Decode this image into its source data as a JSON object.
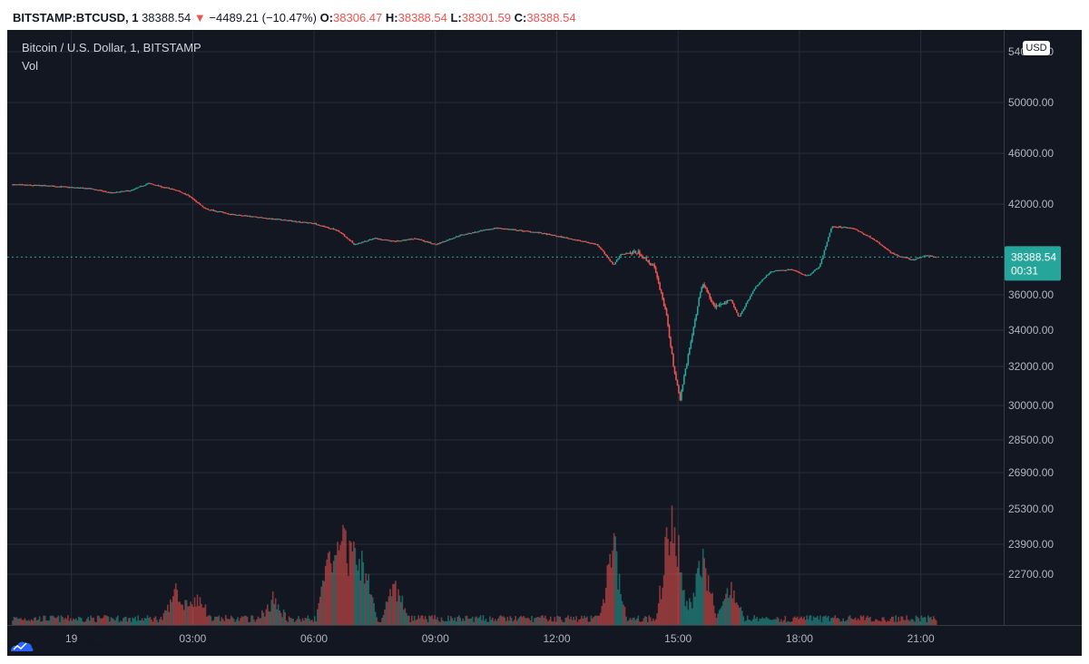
{
  "header": {
    "symbol": "BITSTAMP:BTCUSD, 1",
    "last": "38388.54",
    "arrow": "▼",
    "change": "−4489.21 (−10.47%)",
    "o_label": "O:",
    "o_value": "38306.47",
    "h_label": "H:",
    "h_value": "38388.54",
    "l_label": "L:",
    "l_value": "38301.59",
    "c_label": "C:",
    "c_value": "38388.54"
  },
  "legend": {
    "title": "Bitcoin / U.S. Dollar, 1, BITSTAMP",
    "vol_label": "Vol"
  },
  "currency_badge": "USD",
  "price_tag": {
    "price": "38388.54",
    "countdown": "00:31"
  },
  "footer": {
    "brand": "TradingView"
  },
  "colors": {
    "background": "#131722",
    "grid": "#2a2e39",
    "up": "#26a69a",
    "down": "#ef5350",
    "tag": "#26a69a",
    "axis_text": "#b2b5be"
  },
  "chart_data": {
    "type": "candlestick",
    "title": "Bitcoin / U.S. Dollar, 1, BITSTAMP",
    "x_ticks": [
      "19",
      "03:00",
      "06:00",
      "09:00",
      "12:00",
      "15:00",
      "18:00",
      "21:00"
    ],
    "x_tick_hours": [
      0,
      3,
      6,
      9,
      12,
      15,
      18,
      21
    ],
    "x_range_hours": [
      -1.45,
      23.05
    ],
    "y_ticks": [
      "54000.00",
      "50000.00",
      "46000.00",
      "42000.00",
      "36000.00",
      "34000.00",
      "32000.00",
      "30000.00",
      "28500.00",
      "26900.00",
      "25300.00",
      "23900.00",
      "22700.00"
    ],
    "y_scale": "log",
    "last_price": 38388.54,
    "price_path": [
      {
        "t": -1.45,
        "p": 43300
      },
      {
        "t": -0.5,
        "p": 43200
      },
      {
        "t": 0.5,
        "p": 43000
      },
      {
        "t": 1.0,
        "p": 42700
      },
      {
        "t": 1.5,
        "p": 42900
      },
      {
        "t": 1.9,
        "p": 43400
      },
      {
        "t": 2.3,
        "p": 43100
      },
      {
        "t": 2.6,
        "p": 42900
      },
      {
        "t": 2.9,
        "p": 42500
      },
      {
        "t": 3.3,
        "p": 41600
      },
      {
        "t": 4.0,
        "p": 41200
      },
      {
        "t": 5.0,
        "p": 40900
      },
      {
        "t": 6.0,
        "p": 40600
      },
      {
        "t": 6.6,
        "p": 40100
      },
      {
        "t": 7.0,
        "p": 39200
      },
      {
        "t": 7.5,
        "p": 39600
      },
      {
        "t": 8.0,
        "p": 39400
      },
      {
        "t": 8.5,
        "p": 39600
      },
      {
        "t": 9.0,
        "p": 39200
      },
      {
        "t": 9.6,
        "p": 39800
      },
      {
        "t": 10.5,
        "p": 40300
      },
      {
        "t": 11.5,
        "p": 40000
      },
      {
        "t": 12.3,
        "p": 39600
      },
      {
        "t": 13.0,
        "p": 39200
      },
      {
        "t": 13.4,
        "p": 37900
      },
      {
        "t": 13.6,
        "p": 38600
      },
      {
        "t": 14.0,
        "p": 38700
      },
      {
        "t": 14.4,
        "p": 37800
      },
      {
        "t": 14.7,
        "p": 35000
      },
      {
        "t": 14.9,
        "p": 31800
      },
      {
        "t": 15.05,
        "p": 30300
      },
      {
        "t": 15.3,
        "p": 33200
      },
      {
        "t": 15.6,
        "p": 36800
      },
      {
        "t": 15.9,
        "p": 35300
      },
      {
        "t": 16.3,
        "p": 35800
      },
      {
        "t": 16.5,
        "p": 34700
      },
      {
        "t": 16.9,
        "p": 36500
      },
      {
        "t": 17.3,
        "p": 37500
      },
      {
        "t": 17.8,
        "p": 37600
      },
      {
        "t": 18.2,
        "p": 37200
      },
      {
        "t": 18.5,
        "p": 37800
      },
      {
        "t": 18.8,
        "p": 40400
      },
      {
        "t": 19.3,
        "p": 40300
      },
      {
        "t": 19.8,
        "p": 39600
      },
      {
        "t": 20.3,
        "p": 38600
      },
      {
        "t": 20.8,
        "p": 38200
      },
      {
        "t": 21.1,
        "p": 38500
      },
      {
        "t": 21.4,
        "p": 38388
      }
    ],
    "volume_spikes": [
      {
        "t": 2.6,
        "h": 0.3
      },
      {
        "t": 3.1,
        "h": 0.25
      },
      {
        "t": 5.0,
        "h": 0.22
      },
      {
        "t": 6.4,
        "h": 0.7
      },
      {
        "t": 6.8,
        "h": 0.95
      },
      {
        "t": 7.2,
        "h": 0.75
      },
      {
        "t": 8.0,
        "h": 0.37
      },
      {
        "t": 13.4,
        "h": 0.78
      },
      {
        "t": 14.8,
        "h": 0.9
      },
      {
        "t": 15.0,
        "h": 0.48
      },
      {
        "t": 15.6,
        "h": 0.7
      },
      {
        "t": 16.3,
        "h": 0.33
      }
    ]
  }
}
